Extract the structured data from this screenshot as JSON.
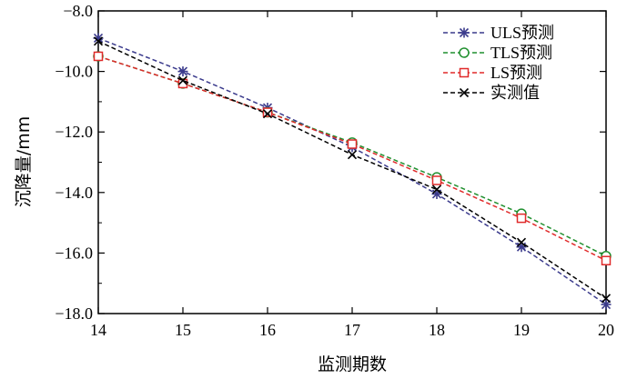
{
  "chart_data": {
    "type": "line",
    "xlabel": "监测期数",
    "ylabel": "沉降量/mm",
    "x": [
      14,
      15,
      16,
      17,
      18,
      19,
      20
    ],
    "xlim": [
      14,
      20
    ],
    "ylim": [
      -18.0,
      -8.0
    ],
    "xticks": [
      "14",
      "15",
      "16",
      "17",
      "18",
      "19",
      "20"
    ],
    "yticks": [
      -8.0,
      -10.0,
      -12.0,
      -14.0,
      -16.0,
      -18.0
    ],
    "ytick_labels": [
      "−8.0",
      "−10.0",
      "−12.0",
      "−14.0",
      "−16.0",
      "−18.0"
    ],
    "grid": false,
    "legend_position": "top-right",
    "series": [
      {
        "name": "ULS预测",
        "values": [
          -8.9,
          -10.0,
          -11.2,
          -12.5,
          -14.05,
          -15.8,
          -17.7
        ],
        "color": "#3a3a8c",
        "marker": "asterisk"
      },
      {
        "name": "TLS预测",
        "values": [
          -9.5,
          -10.4,
          -11.35,
          -12.35,
          -13.5,
          -14.7,
          -16.1
        ],
        "color": "#1f8f2e",
        "marker": "circle"
      },
      {
        "name": "LS预测",
        "values": [
          -9.5,
          -10.4,
          -11.35,
          -12.4,
          -13.6,
          -14.85,
          -16.25
        ],
        "color": "#e02a2a",
        "marker": "square"
      },
      {
        "name": "实测值",
        "values": [
          -9.0,
          -10.3,
          -11.4,
          -12.75,
          -13.9,
          -15.65,
          -17.5
        ],
        "color": "#000000",
        "marker": "x"
      }
    ]
  }
}
